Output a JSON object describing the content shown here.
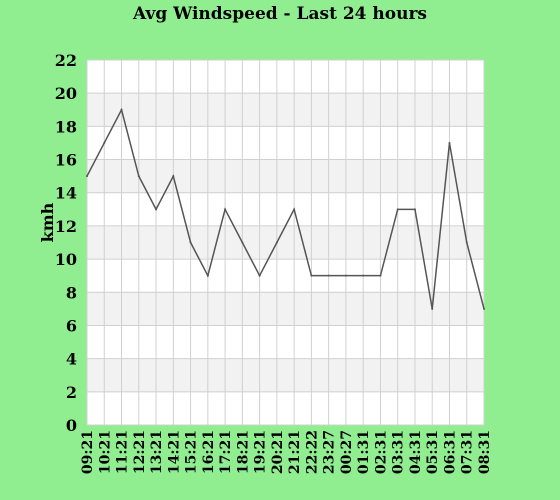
{
  "chart_data": {
    "type": "line",
    "title": "Avg Windspeed - Last 24 hours",
    "xlabel": "",
    "ylabel": "kmh",
    "ylim": [
      0,
      22
    ],
    "yticks": [
      0,
      2,
      4,
      6,
      8,
      10,
      12,
      14,
      16,
      18,
      20,
      22
    ],
    "categories": [
      "09:21",
      "10:21",
      "11:21",
      "12:21",
      "13:21",
      "14:21",
      "15:21",
      "16:21",
      "17:21",
      "18:21",
      "19:21",
      "20:21",
      "21:21",
      "22:22",
      "23:27",
      "00:27",
      "01:31",
      "02:31",
      "03:31",
      "04:31",
      "05:31",
      "06:31",
      "07:31",
      "08:31"
    ],
    "values": [
      15,
      17,
      19,
      15,
      13,
      15,
      11,
      9,
      13,
      11,
      9,
      11,
      13,
      9,
      9,
      9,
      9,
      9,
      13,
      13,
      7,
      17,
      11,
      7
    ],
    "grid": true,
    "colors": {
      "background": "#90ee90",
      "plot_band_light": "#ffffff",
      "plot_band_dark": "#f2f2f2",
      "grid": "#d0d0d0",
      "line": "#555555"
    }
  }
}
